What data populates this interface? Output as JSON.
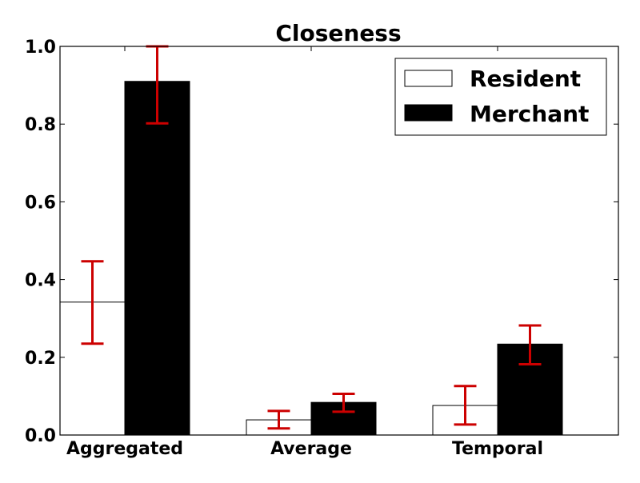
{
  "chart_data": {
    "type": "bar",
    "title": "Closeness",
    "categories": [
      "Aggregated",
      "Average",
      "Temporal"
    ],
    "series": [
      {
        "name": "Resident",
        "values": [
          0.342,
          0.039,
          0.076
        ],
        "error_low": [
          0.235,
          0.017,
          0.027
        ],
        "error_high": [
          0.447,
          0.062,
          0.126
        ],
        "fill": "#ffffff"
      },
      {
        "name": "Merchant",
        "values": [
          0.91,
          0.084,
          0.234
        ],
        "error_low": [
          0.802,
          0.06,
          0.182
        ],
        "error_high": [
          1.0,
          0.106,
          0.282
        ],
        "fill": "#000000"
      }
    ],
    "ylim": [
      0,
      1.0
    ],
    "yticks": [
      "0.0",
      "0.2",
      "0.4",
      "0.6",
      "0.8",
      "1.0"
    ],
    "xlabel": "",
    "ylabel": "",
    "grid": false,
    "legend_position": "top-right",
    "colors": {
      "error_bar": "#cc0000",
      "axis": "#000000"
    }
  }
}
